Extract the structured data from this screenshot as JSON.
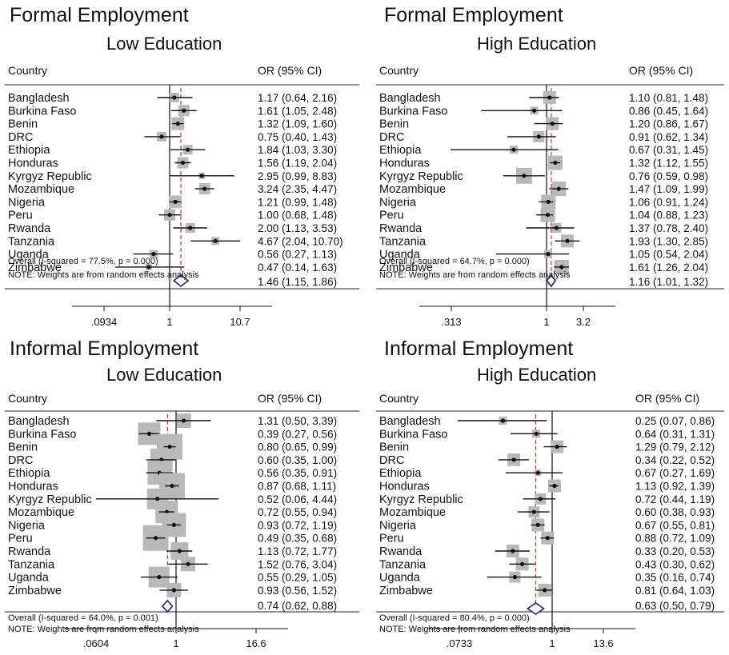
{
  "chart_data": [
    {
      "type": "forest",
      "title": "Formal Employment",
      "subtitle": "Low Education",
      "col_country": "Country",
      "col_or": "OR (95% CI)",
      "overall_label": "Overall  (I-squared = 77.5%, p = 0.000)",
      "note": "NOTE: Weights are from random effects analysis",
      "ticks": [
        ".0934",
        "1",
        "10.7"
      ],
      "xlim": [
        0.0934,
        10.7
      ],
      "rows": [
        {
          "country": "Bangladesh",
          "or": 1.17,
          "lo": 0.64,
          "hi": 2.16,
          "label": "1.17 (0.64, 2.16)",
          "w": 6
        },
        {
          "country": "Burkina Faso",
          "or": 1.61,
          "lo": 1.05,
          "hi": 2.48,
          "label": "1.61 (1.05, 2.48)",
          "w": 7
        },
        {
          "country": "Benin",
          "or": 1.32,
          "lo": 1.09,
          "hi": 1.6,
          "label": "1.32 (1.09, 1.60)",
          "w": 8
        },
        {
          "country": "DRC",
          "or": 0.75,
          "lo": 0.4,
          "hi": 1.43,
          "label": "0.75 (0.40, 1.43)",
          "w": 6
        },
        {
          "country": "Ethiopia",
          "or": 1.84,
          "lo": 1.03,
          "hi": 3.3,
          "label": "1.84 (1.03, 3.30)",
          "w": 6
        },
        {
          "country": "Honduras",
          "or": 1.56,
          "lo": 1.19,
          "hi": 2.04,
          "label": "1.56 (1.19, 2.04)",
          "w": 7
        },
        {
          "country": "Kyrgyz Republic",
          "or": 2.95,
          "lo": 0.99,
          "hi": 8.83,
          "label": "2.95 (0.99, 8.83)",
          "w": 4
        },
        {
          "country": "Mozambique",
          "or": 3.24,
          "lo": 2.35,
          "hi": 4.47,
          "label": "3.24 (2.35, 4.47)",
          "w": 7
        },
        {
          "country": "Nigeria",
          "or": 1.21,
          "lo": 0.99,
          "hi": 1.48,
          "label": "1.21 (0.99, 1.48)",
          "w": 8
        },
        {
          "country": "Peru",
          "or": 1.0,
          "lo": 0.68,
          "hi": 1.48,
          "label": "1.00 (0.68, 1.48)",
          "w": 7
        },
        {
          "country": "Rwanda",
          "or": 2.0,
          "lo": 1.13,
          "hi": 3.53,
          "label": "2.00 (1.13, 3.53)",
          "w": 6
        },
        {
          "country": "Tanzania",
          "or": 4.67,
          "lo": 2.04,
          "hi": 10.7,
          "label": "4.67 (2.04, 10.70)",
          "w": 5
        },
        {
          "country": "Uganda",
          "or": 0.56,
          "lo": 0.27,
          "hi": 1.13,
          "label": "0.56 (0.27, 1.13)",
          "w": 5
        },
        {
          "country": "Zimbabwe",
          "or": 0.47,
          "lo": 0.14,
          "hi": 1.63,
          "label": "0.47 (0.14, 1.63)",
          "w": 4
        }
      ],
      "overall": {
        "or": 1.46,
        "lo": 1.15,
        "hi": 1.86,
        "label": "1.46 (1.15, 1.86)"
      }
    },
    {
      "type": "forest",
      "title": "Formal Employment",
      "subtitle": "High Education",
      "col_country": "Country",
      "col_or": "OR (95% CI)",
      "overall_label": "Overall  (I-squared = 64.7%, p = 0.000)",
      "note": "NOTE: Weights are from random effects analysis",
      "ticks": [
        ".313",
        "1",
        "3.2"
      ],
      "xlim": [
        0.313,
        3.2
      ],
      "rows": [
        {
          "country": "Bangladesh",
          "or": 1.1,
          "lo": 0.81,
          "hi": 1.48,
          "label": "1.10 (0.81, 1.48)",
          "w": 8
        },
        {
          "country": "Burkina Faso",
          "or": 0.86,
          "lo": 0.45,
          "hi": 1.64,
          "label": "0.86 (0.45, 1.64)",
          "w": 5
        },
        {
          "country": "Benin",
          "or": 1.2,
          "lo": 0.86,
          "hi": 1.67,
          "label": "1.20 (0.86, 1.67)",
          "w": 8
        },
        {
          "country": "DRC",
          "or": 0.91,
          "lo": 0.62,
          "hi": 1.34,
          "label": "0.91 (0.62, 1.34)",
          "w": 7
        },
        {
          "country": "Ethiopia",
          "or": 0.67,
          "lo": 0.31,
          "hi": 1.45,
          "label": "0.67 (0.31, 1.45)",
          "w": 5
        },
        {
          "country": "Honduras",
          "or": 1.32,
          "lo": 1.12,
          "hi": 1.55,
          "label": "1.32 (1.12, 1.55)",
          "w": 9
        },
        {
          "country": "Kyrgyz Republic",
          "or": 0.76,
          "lo": 0.59,
          "hi": 0.98,
          "label": "0.76 (0.59, 0.98)",
          "w": 10
        },
        {
          "country": "Mozambique",
          "or": 1.47,
          "lo": 1.09,
          "hi": 1.99,
          "label": "1.47 (1.09, 1.99)",
          "w": 9
        },
        {
          "country": "Nigeria",
          "or": 1.06,
          "lo": 0.91,
          "hi": 1.24,
          "label": "1.06 (0.91, 1.24)",
          "w": 9
        },
        {
          "country": "Peru",
          "or": 1.04,
          "lo": 0.88,
          "hi": 1.23,
          "label": "1.04 (0.88, 1.23)",
          "w": 9
        },
        {
          "country": "Rwanda",
          "or": 1.37,
          "lo": 0.78,
          "hi": 2.4,
          "label": "1.37 (0.78, 2.40)",
          "w": 6
        },
        {
          "country": "Tanzania",
          "or": 1.93,
          "lo": 1.3,
          "hi": 2.85,
          "label": "1.93 (1.30, 2.85)",
          "w": 8
        },
        {
          "country": "Uganda",
          "or": 1.05,
          "lo": 0.54,
          "hi": 2.04,
          "label": "1.05 (0.54, 2.04)",
          "w": 5
        },
        {
          "country": "Zimbabwe",
          "or": 1.61,
          "lo": 1.26,
          "hi": 2.04,
          "label": "1.61 (1.26, 2.04)",
          "w": 9
        }
      ],
      "overall": {
        "or": 1.16,
        "lo": 1.01,
        "hi": 1.32,
        "label": "1.16 (1.01, 1.32)"
      }
    },
    {
      "type": "forest",
      "title": "Informal Employment",
      "subtitle": "Low Education",
      "col_country": "Country",
      "col_or": "OR (95% CI)",
      "overall_label": "Overall  (I-squared = 64.0%, p = 0.001)",
      "note": "NOTE: Weights are from random effects analysis",
      "ticks": [
        ".0604",
        "1",
        "16.6"
      ],
      "xlim": [
        0.0604,
        16.6
      ],
      "rows": [
        {
          "country": "Bangladesh",
          "or": 1.31,
          "lo": 0.5,
          "hi": 3.39,
          "label": "1.31 (0.50, 3.39)",
          "w": 9
        },
        {
          "country": "Burkina Faso",
          "or": 0.39,
          "lo": 0.27,
          "hi": 0.56,
          "label": "0.39 (0.27, 0.56)",
          "w": 14
        },
        {
          "country": "Benin",
          "or": 0.8,
          "lo": 0.65,
          "hi": 0.99,
          "label": "0.80 (0.65, 0.99)",
          "w": 16
        },
        {
          "country": "DRC",
          "or": 0.6,
          "lo": 0.35,
          "hi": 1.0,
          "label": "0.60 (0.35, 1.00)",
          "w": 14
        },
        {
          "country": "Ethiopia",
          "or": 0.56,
          "lo": 0.35,
          "hi": 0.91,
          "label": "0.56 (0.35, 0.91)",
          "w": 15
        },
        {
          "country": "Honduras",
          "or": 0.87,
          "lo": 0.68,
          "hi": 1.11,
          "label": "0.87 (0.68, 1.11)",
          "w": 16
        },
        {
          "country": "Kyrgyz Republic",
          "or": 0.52,
          "lo": 0.06,
          "hi": 4.44,
          "label": "0.52 (0.06, 4.44)",
          "w": 13
        },
        {
          "country": "Mozambique",
          "or": 0.72,
          "lo": 0.55,
          "hi": 0.94,
          "label": "0.72 (0.55, 0.94)",
          "w": 14
        },
        {
          "country": "Nigeria",
          "or": 0.93,
          "lo": 0.72,
          "hi": 1.19,
          "label": "0.93 (0.72, 1.19)",
          "w": 15
        },
        {
          "country": "Peru",
          "or": 0.49,
          "lo": 0.35,
          "hi": 0.68,
          "label": "0.49 (0.35, 0.68)",
          "w": 16
        },
        {
          "country": "Rwanda",
          "or": 1.13,
          "lo": 0.72,
          "hi": 1.77,
          "label": "1.13 (0.72, 1.77)",
          "w": 11
        },
        {
          "country": "Tanzania",
          "or": 1.52,
          "lo": 0.76,
          "hi": 3.04,
          "label": "1.52 (0.76, 3.04)",
          "w": 9
        },
        {
          "country": "Uganda",
          "or": 0.55,
          "lo": 0.29,
          "hi": 1.05,
          "label": "0.55 (0.29, 1.05)",
          "w": 13
        },
        {
          "country": "Zimbabwe",
          "or": 0.93,
          "lo": 0.56,
          "hi": 1.52,
          "label": "0.93 (0.56, 1.52)",
          "w": 9
        }
      ],
      "overall": {
        "or": 0.74,
        "lo": 0.62,
        "hi": 0.88,
        "label": "0.74 (0.62, 0.88)"
      }
    },
    {
      "type": "forest",
      "title": "Informal Employment",
      "subtitle": "High Education",
      "col_country": "Country",
      "col_or": "OR (95% CI)",
      "overall_label": "Overall  (I-squared = 80.4%, p = 0.000)",
      "note": "NOTE: Weights are from random effects analysis",
      "ticks": [
        ".0733",
        "1",
        "13.6"
      ],
      "xlim": [
        0.0733,
        13.6
      ],
      "rows": [
        {
          "country": "Bangladesh",
          "or": 0.25,
          "lo": 0.07,
          "hi": 0.86,
          "label": "0.25 (0.07, 0.86)",
          "w": 5
        },
        {
          "country": "Burkina Faso",
          "or": 0.64,
          "lo": 0.31,
          "hi": 1.31,
          "label": "0.64 (0.31, 1.31)",
          "w": 5
        },
        {
          "country": "Benin",
          "or": 1.29,
          "lo": 0.79,
          "hi": 2.12,
          "label": "1.29 (0.79, 2.12)",
          "w": 8
        },
        {
          "country": "DRC",
          "or": 0.34,
          "lo": 0.22,
          "hi": 0.52,
          "label": "0.34 (0.22, 0.52)",
          "w": 8
        },
        {
          "country": "Ethiopia",
          "or": 0.67,
          "lo": 0.27,
          "hi": 1.69,
          "label": "0.67 (0.27, 1.69)",
          "w": 4
        },
        {
          "country": "Honduras",
          "or": 1.13,
          "lo": 0.92,
          "hi": 1.39,
          "label": "1.13 (0.92, 1.39)",
          "w": 8
        },
        {
          "country": "Kyrgyz Republic",
          "or": 0.72,
          "lo": 0.44,
          "hi": 1.19,
          "label": "0.72 (0.44, 1.19)",
          "w": 7
        },
        {
          "country": "Mozambique",
          "or": 0.6,
          "lo": 0.38,
          "hi": 0.93,
          "label": "0.60 (0.38, 0.93)",
          "w": 7
        },
        {
          "country": "Nigeria",
          "or": 0.67,
          "lo": 0.55,
          "hi": 0.81,
          "label": "0.67 (0.55, 0.81)",
          "w": 8
        },
        {
          "country": "Peru",
          "or": 0.88,
          "lo": 0.72,
          "hi": 1.09,
          "label": "0.88 (0.72, 1.09)",
          "w": 8
        },
        {
          "country": "Rwanda",
          "or": 0.33,
          "lo": 0.2,
          "hi": 0.53,
          "label": "0.33 (0.20, 0.53)",
          "w": 8
        },
        {
          "country": "Tanzania",
          "or": 0.43,
          "lo": 0.3,
          "hi": 0.62,
          "label": "0.43 (0.30, 0.62)",
          "w": 8
        },
        {
          "country": "Uganda",
          "or": 0.35,
          "lo": 0.16,
          "hi": 0.74,
          "label": "0.35 (0.16, 0.74)",
          "w": 7
        },
        {
          "country": "Zimbabwe",
          "or": 0.81,
          "lo": 0.64,
          "hi": 1.03,
          "label": "0.81 (0.64, 1.03)",
          "w": 8
        }
      ],
      "overall": {
        "or": 0.63,
        "lo": 0.5,
        "hi": 0.79,
        "label": "0.63 (0.50, 0.79)"
      }
    }
  ]
}
